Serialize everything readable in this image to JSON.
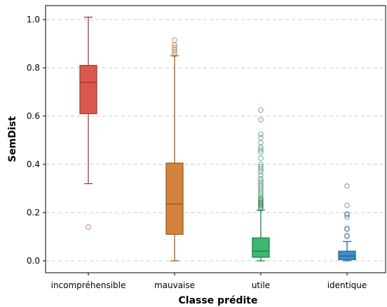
{
  "chart_data": {
    "type": "box",
    "xlabel": "Classe prédite",
    "ylabel": "SemDist",
    "ylim": [
      -0.05,
      1.06
    ],
    "yticks": [
      0.0,
      0.2,
      0.4,
      0.6,
      0.8,
      1.0
    ],
    "ytick_labels": [
      "0.0",
      "0.2",
      "0.4",
      "0.6",
      "0.8",
      "1.0"
    ],
    "grid": "y-dashed",
    "categories": [
      "incompréhensible",
      "mauvaise",
      "utile",
      "identique"
    ],
    "boxes": [
      {
        "name": "incompréhensible",
        "q1": 0.61,
        "median": 0.74,
        "q3": 0.81,
        "whislo": 0.32,
        "whishi": 1.01,
        "fliers": [
          0.14
        ],
        "fill": "#d9584e",
        "edge": "#a63a32"
      },
      {
        "name": "mauvaise",
        "q1": 0.11,
        "median": 0.235,
        "q3": 0.405,
        "whislo": 0.0,
        "whishi": 0.85,
        "fliers": [
          0.855,
          0.865,
          0.875,
          0.885,
          0.895,
          0.915
        ],
        "fill": "#d4833f",
        "edge": "#a05a1e"
      },
      {
        "name": "utile",
        "q1": 0.015,
        "median": 0.04,
        "q3": 0.095,
        "whislo": 0.0,
        "whishi": 0.21,
        "fliers": [
          0.215,
          0.22,
          0.225,
          0.23,
          0.235,
          0.24,
          0.245,
          0.25,
          0.255,
          0.26,
          0.27,
          0.28,
          0.29,
          0.3,
          0.31,
          0.32,
          0.33,
          0.34,
          0.355,
          0.37,
          0.38,
          0.39,
          0.4,
          0.425,
          0.45,
          0.46,
          0.47,
          0.49,
          0.51,
          0.525,
          0.585,
          0.625
        ],
        "fill": "#3db870",
        "edge": "#23804a"
      },
      {
        "name": "identique",
        "q1": 0.005,
        "median": 0.02,
        "q3": 0.04,
        "whislo": 0.0,
        "whishi": 0.08,
        "fliers": [
          0.1,
          0.105,
          0.13,
          0.135,
          0.18,
          0.19,
          0.195,
          0.23,
          0.31
        ],
        "fill": "#3f8fc7",
        "edge": "#2b6690"
      }
    ]
  }
}
